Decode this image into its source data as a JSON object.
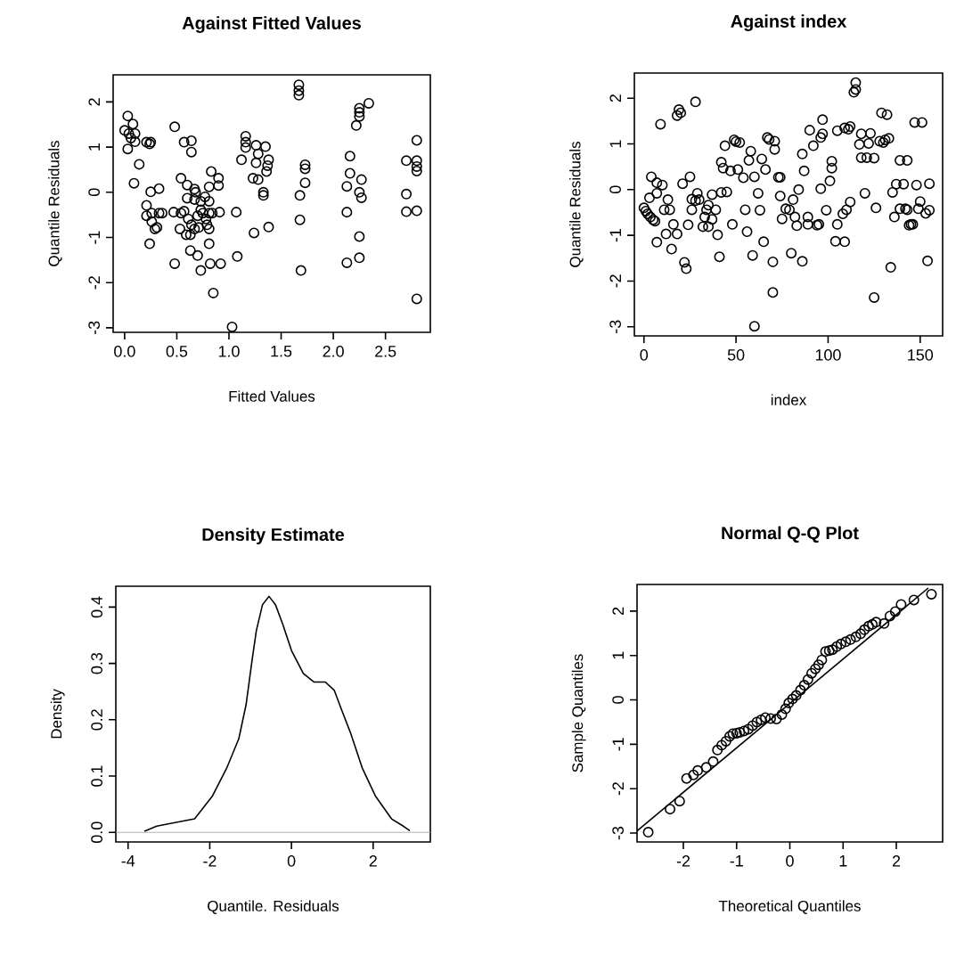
{
  "chart_data": [
    {
      "type": "scatter",
      "title": "Against Fitted Values",
      "xlabel": "Fitted Values",
      "ylabel": "Quantile Residuals",
      "marker": "circle",
      "xlim": [
        -0.11,
        2.93
      ],
      "ylim": [
        -3.1,
        2.6
      ],
      "xticks": [
        {
          "value": 0,
          "label": "0.0"
        },
        {
          "value": 0.5,
          "label": "0.5"
        },
        {
          "value": 1,
          "label": "1.0"
        },
        {
          "value": 1.5,
          "label": "1.5"
        },
        {
          "value": 2,
          "label": "2.0"
        },
        {
          "value": 2.5,
          "label": "2.5"
        }
      ],
      "yticks": [
        -3,
        -2,
        -1,
        0,
        1,
        2
      ],
      "x": [
        0.03,
        0.08,
        0.0,
        0.04,
        0.1,
        0.06,
        0.1,
        0.03,
        0.21,
        0.24,
        0.25,
        0.14,
        0.09,
        0.48,
        0.57,
        0.64,
        0.64,
        0.25,
        0.33,
        0.21,
        0.21,
        0.26,
        0.33,
        0.36,
        0.26,
        0.29,
        0.31,
        0.24,
        0.48,
        0.54,
        0.6,
        0.67,
        0.68,
        0.6,
        0.67,
        0.73,
        0.77,
        0.81,
        0.83,
        0.9,
        0.9,
        0.81,
        0.47,
        0.54,
        0.57,
        0.61,
        0.64,
        0.7,
        0.73,
        0.75,
        0.78,
        0.81,
        0.84,
        0.91,
        0.53,
        0.59,
        0.63,
        0.67,
        0.71,
        0.79,
        0.81,
        0.81,
        0.63,
        0.7,
        0.73,
        0.82,
        0.92,
        0.85,
        1.07,
        1.08,
        1.03,
        1.24,
        1.38,
        1.16,
        1.16,
        1.16,
        1.12,
        1.26,
        1.35,
        1.28,
        1.26,
        1.38,
        1.37,
        1.36,
        1.23,
        1.28,
        1.33,
        1.33,
        1.67,
        1.67,
        1.67,
        1.73,
        1.73,
        1.73,
        1.68,
        1.68,
        1.69,
        2.34,
        2.25,
        2.25,
        2.25,
        2.22,
        2.16,
        2.16,
        2.27,
        2.13,
        2.25,
        2.27,
        2.13,
        2.25,
        2.25,
        2.13,
        2.8,
        2.7,
        2.8,
        2.8,
        2.8,
        2.7,
        2.7,
        2.8,
        2.8
      ],
      "values": [
        1.69,
        1.51,
        1.37,
        1.3,
        1.3,
        1.2,
        1.12,
        0.96,
        1.11,
        1.07,
        1.11,
        0.62,
        0.2,
        1.45,
        1.11,
        1.14,
        0.89,
        0.01,
        0.08,
        -0.29,
        -0.52,
        -0.46,
        -0.46,
        -0.46,
        -0.65,
        -0.81,
        -0.78,
        -1.14,
        -1.58,
        0.31,
        0.16,
        0.07,
        0,
        -0.13,
        -0.16,
        -0.2,
        -0.1,
        -0.2,
        0.46,
        0.31,
        0.15,
        0.12,
        -0.44,
        -0.46,
        -0.42,
        -0.59,
        -0.72,
        -0.52,
        -0.39,
        -0.46,
        -0.59,
        -0.46,
        -0.46,
        -0.44,
        -0.81,
        -0.94,
        -0.94,
        -0.81,
        -0.78,
        -0.72,
        -0.81,
        -1.14,
        -1.29,
        -1.4,
        -1.73,
        -1.58,
        -1.58,
        -2.23,
        -0.44,
        -1.42,
        -2.98,
        -0.9,
        -0.77,
        1.24,
        1.11,
        0.99,
        0.72,
        1.04,
        1.01,
        0.85,
        0.65,
        0.72,
        0.59,
        0.46,
        0.31,
        0.28,
        0,
        -0.07,
        2.38,
        2.25,
        2.15,
        0.61,
        0.52,
        0.21,
        -0.07,
        -0.61,
        -1.73,
        1.97,
        1.86,
        1.77,
        1.68,
        1.48,
        0.8,
        0.42,
        0.28,
        0.13,
        0,
        -0.12,
        -0.44,
        -0.98,
        -1.45,
        -1.56,
        1.15,
        0.7,
        0.7,
        0.57,
        0.47,
        -0.04,
        -0.43,
        -0.41,
        -2.36
      ]
    },
    {
      "type": "scatter",
      "title": "Against index",
      "xlabel": "index",
      "ylabel": "Quantile Residuals",
      "marker": "circle",
      "xlim": [
        -5.2,
        162.2
      ],
      "ylim": [
        -3.2,
        2.55
      ],
      "xticks": [
        0,
        50,
        100,
        150
      ],
      "yticks": [
        -3,
        -2,
        -1,
        0,
        1,
        2
      ],
      "x": [
        0,
        1,
        2,
        3.5,
        5,
        6,
        3,
        4,
        7,
        7,
        10,
        7,
        9,
        11,
        13,
        14,
        12,
        16,
        15,
        18,
        18,
        19,
        20,
        21,
        22,
        23,
        24,
        25,
        26,
        26,
        28,
        29,
        30,
        28,
        32,
        35,
        33,
        34,
        35,
        37,
        39,
        37,
        40,
        41,
        42,
        45,
        44,
        42,
        43,
        47,
        48,
        49,
        50,
        52,
        51,
        54,
        55,
        56,
        57,
        58,
        59,
        60,
        60,
        62,
        63,
        64,
        65,
        66,
        67,
        68,
        70,
        70,
        71,
        71,
        73,
        74,
        74,
        75,
        77,
        79,
        80,
        81,
        82,
        83,
        84,
        86,
        86,
        87,
        89,
        89,
        90,
        92,
        94,
        95,
        96,
        96,
        97,
        97,
        99,
        101,
        102,
        102,
        104,
        105,
        105,
        108,
        109,
        109,
        110,
        111,
        112,
        112,
        114,
        115,
        115,
        117,
        118,
        118,
        121,
        120,
        122,
        123,
        125,
        125,
        126,
        128,
        129,
        132,
        130,
        131,
        133,
        134,
        135,
        136,
        137,
        141,
        139,
        143,
        139,
        142,
        143,
        144,
        145,
        146,
        147,
        151,
        148,
        150,
        149,
        153,
        154,
        155,
        155
      ],
      "values": [
        -0.4,
        -0.47,
        -0.53,
        -0.6,
        -0.66,
        -0.69,
        -0.18,
        0.28,
        -0.08,
        0.15,
        0.1,
        -1.15,
        1.43,
        -0.44,
        -0.22,
        -0.44,
        -0.97,
        -0.76,
        -1.3,
        -0.97,
        1.62,
        1.75,
        1.68,
        0.13,
        -1.59,
        -1.73,
        -0.77,
        0.28,
        -0.44,
        -0.21,
        1.92,
        -0.08,
        -0.22,
        -0.24,
        -0.81,
        -0.81,
        -0.6,
        -0.44,
        -0.34,
        -0.11,
        -0.44,
        -0.65,
        -0.99,
        -1.47,
        -0.06,
        -0.05,
        0.96,
        0.6,
        0.47,
        0.41,
        -0.76,
        1.09,
        1.05,
        1.03,
        0.44,
        0.26,
        -0.44,
        -0.92,
        0.64,
        0.84,
        -1.44,
        -2.99,
        0.28,
        -0.08,
        -0.45,
        0.67,
        -1.14,
        0.44,
        1.14,
        1.1,
        -1.58,
        -2.25,
        1.06,
        0.88,
        0.27,
        0.27,
        -0.14,
        -0.64,
        -0.42,
        -0.44,
        -1.39,
        -0.22,
        -0.6,
        -0.79,
        0,
        0.78,
        -1.57,
        0.41,
        -0.6,
        -0.76,
        1.3,
        0.96,
        -0.78,
        -0.76,
        0.02,
        1.14,
        1.22,
        1.53,
        -0.45,
        0.19,
        0.47,
        0.62,
        -1.13,
        -0.76,
        1.29,
        -0.53,
        1.35,
        -1.14,
        -0.44,
        1.32,
        1.38,
        -0.27,
        2.13,
        2.19,
        2.34,
        0.99,
        1.22,
        0.7,
        0.7,
        -0.08,
        1.01,
        1.23,
        0.69,
        -2.36,
        -0.4,
        1.06,
        1.68,
        1.64,
        1.03,
        1.09,
        1.12,
        -1.7,
        -0.06,
        -0.6,
        0.12,
        0.12,
        0.64,
        0.64,
        -0.42,
        -0.42,
        -0.44,
        -0.78,
        -0.76,
        -0.76,
        1.47,
        1.47,
        0.1,
        -0.26,
        -0.42,
        -0.52,
        -1.56,
        -0.45,
        0.13
      ]
    },
    {
      "type": "line",
      "title": "Density Estimate",
      "xlabel": "Quantile. Residuals",
      "ylabel": "Density",
      "xlim": [
        -4.3,
        3.4
      ],
      "ylim": [
        -0.017,
        0.437
      ],
      "xticks": [
        -4,
        -2,
        0,
        2
      ],
      "yticks": [
        {
          "value": 0,
          "label": "0.0"
        },
        {
          "value": 0.1,
          "label": "0.1"
        },
        {
          "value": 0.2,
          "label": "0.2"
        },
        {
          "value": 0.3,
          "label": "0.3"
        },
        {
          "value": 0.4,
          "label": "0.4"
        }
      ],
      "ref_lines": [
        {
          "axis": "y",
          "value": 0,
          "color": "#a0a0a0"
        }
      ],
      "x": [
        -3.6,
        -3.3,
        -2.37,
        -1.94,
        -1.58,
        -1.29,
        -1.11,
        -0.96,
        -0.86,
        -0.71,
        -0.55,
        -0.39,
        -0.21,
        0,
        0.29,
        0.55,
        0.83,
        1.05,
        1.23,
        1.45,
        1.73,
        2.06,
        2.45,
        2.74,
        2.9
      ],
      "values": [
        0.002,
        0.011,
        0.024,
        0.064,
        0.115,
        0.166,
        0.227,
        0.308,
        0.358,
        0.404,
        0.419,
        0.404,
        0.369,
        0.323,
        0.282,
        0.267,
        0.267,
        0.252,
        0.217,
        0.176,
        0.115,
        0.064,
        0.024,
        0.011,
        0.003
      ]
    },
    {
      "type": "scatter",
      "title": "Normal Q-Q Plot",
      "xlabel": "Theoretical Quantiles",
      "ylabel": "Sample Quantiles",
      "marker": "circle",
      "xlim": [
        -2.87,
        2.87
      ],
      "ylim": [
        -3.2,
        2.6
      ],
      "xticks": [
        -2,
        -1,
        0,
        1,
        2
      ],
      "yticks": [
        -3,
        -2,
        -1,
        0,
        1,
        2
      ],
      "series": [
        {
          "x": [
            -2.66,
            -2.25,
            -2.07,
            -1.94,
            -1.81,
            -1.73,
            -1.57,
            -1.44,
            -1.36,
            -1.28,
            -1.2,
            -1.13,
            -1.07,
            -1.0,
            -0.94,
            -0.86,
            -0.78,
            -0.7,
            -0.62,
            -0.54,
            -0.46,
            -0.36,
            -0.25,
            -0.15,
            -0.08,
            -0.02,
            0.05,
            0.12,
            0.2,
            0.27,
            0.34,
            0.41,
            0.48,
            0.54,
            0.6,
            0.67,
            0.74,
            0.8,
            0.88,
            0.96,
            1.05,
            1.14,
            1.24,
            1.33,
            1.4,
            1.48,
            1.55,
            1.62,
            1.77,
            1.88,
            1.98,
            2.09,
            2.33,
            2.66
          ],
          "values": [
            -2.98,
            -2.46,
            -2.28,
            -1.77,
            -1.69,
            -1.59,
            -1.52,
            -1.39,
            -1.13,
            -1.02,
            -0.93,
            -0.82,
            -0.76,
            -0.75,
            -0.73,
            -0.7,
            -0.66,
            -0.58,
            -0.5,
            -0.45,
            -0.4,
            -0.42,
            -0.43,
            -0.33,
            -0.2,
            -0.07,
            0.02,
            0.1,
            0.22,
            0.33,
            0.46,
            0.6,
            0.7,
            0.79,
            0.9,
            1.09,
            1.11,
            1.13,
            1.2,
            1.26,
            1.31,
            1.36,
            1.42,
            1.49,
            1.58,
            1.66,
            1.7,
            1.75,
            1.72,
            1.89,
            1.99,
            2.15,
            2.25,
            2.38
          ]
        },
        {
          "type": "line",
          "marker": "none",
          "x": [
            -2.87,
            2.6
          ],
          "values": [
            -2.95,
            2.52
          ]
        }
      ]
    }
  ]
}
